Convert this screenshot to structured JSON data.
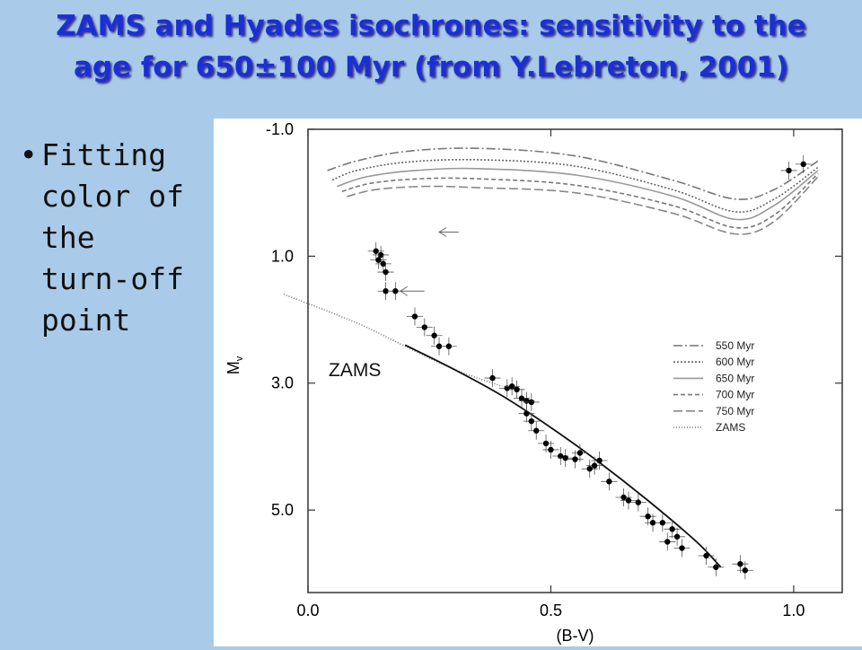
{
  "slide": {
    "title_line1": "ZAMS and Hyades isochrones: sensitivity to the",
    "title_line2": "age for 650±100 Myr (from Y.Lebreton, 2001)",
    "bullet": "Fitting\ncolor of\nthe\nturn-off\npoint",
    "annotation": "ZAMS"
  },
  "chart_data": {
    "type": "line",
    "xlabel": "(B-V)",
    "ylabel": "M_V",
    "xlim": [
      0.0,
      1.1
    ],
    "ylim": [
      -1.0,
      6.3
    ],
    "y_inverted": true,
    "x_ticks": [
      {
        "v": 0.0,
        "label": "0.0"
      },
      {
        "v": 0.5,
        "label": "0.5"
      },
      {
        "v": 1.0,
        "label": "1.0"
      }
    ],
    "y_ticks": [
      {
        "v": -1.0,
        "label": "-1.0"
      },
      {
        "v": 1.0,
        "label": "1.0"
      },
      {
        "v": 3.0,
        "label": "3.0"
      },
      {
        "v": 5.0,
        "label": "5.0"
      }
    ],
    "legend_position": "right",
    "series": [
      {
        "name": "550 Myr",
        "dash": "10,3,2,3",
        "color": "#777777",
        "x": [
          0.04,
          0.1,
          0.2,
          0.35,
          0.55,
          0.75,
          0.88,
          0.96,
          1.05
        ],
        "y": [
          -0.35,
          -0.5,
          -0.65,
          -0.7,
          -0.58,
          -0.2,
          0.1,
          -0.05,
          -0.5
        ]
      },
      {
        "name": "600 Myr",
        "dash": "2,2",
        "color": "#666666",
        "x": [
          0.05,
          0.1,
          0.2,
          0.35,
          0.55,
          0.75,
          0.88,
          0.96,
          1.05
        ],
        "y": [
          -0.2,
          -0.35,
          -0.48,
          -0.52,
          -0.42,
          -0.05,
          0.3,
          0.1,
          -0.4
        ]
      },
      {
        "name": "650 Myr",
        "dash": "",
        "color": "#999999",
        "x": [
          0.06,
          0.12,
          0.22,
          0.35,
          0.55,
          0.75,
          0.88,
          0.96,
          1.05
        ],
        "y": [
          -0.1,
          -0.25,
          -0.35,
          -0.38,
          -0.28,
          0.05,
          0.42,
          0.2,
          -0.35
        ]
      },
      {
        "name": "700 Myr",
        "dash": "5,3",
        "color": "#777777",
        "x": [
          0.07,
          0.13,
          0.23,
          0.35,
          0.55,
          0.75,
          0.88,
          0.96,
          1.05
        ],
        "y": [
          -0.02,
          -0.15,
          -0.22,
          -0.22,
          -0.12,
          0.2,
          0.55,
          0.35,
          -0.3
        ]
      },
      {
        "name": "750 Myr",
        "dash": "10,4",
        "color": "#888888",
        "x": [
          0.08,
          0.14,
          0.24,
          0.35,
          0.55,
          0.75,
          0.88,
          0.96,
          1.05
        ],
        "y": [
          0.06,
          -0.05,
          -0.1,
          -0.08,
          0.0,
          0.32,
          0.65,
          0.45,
          -0.25
        ]
      },
      {
        "name": "ZAMS",
        "dash": "1,2",
        "color": "#777777",
        "x": [
          -0.05,
          0.1,
          0.2,
          0.3,
          0.4
        ],
        "y": [
          1.6,
          2.05,
          2.42,
          2.78,
          3.05
        ]
      }
    ],
    "main_sequence_line": {
      "x": [
        0.2,
        0.3,
        0.4,
        0.5,
        0.6,
        0.7,
        0.8,
        0.85
      ],
      "y": [
        2.4,
        2.78,
        3.2,
        3.7,
        4.25,
        4.85,
        5.5,
        5.9
      ]
    },
    "points": [
      {
        "x": 0.14,
        "y": 0.92
      },
      {
        "x": 0.15,
        "y": 0.98
      },
      {
        "x": 0.155,
        "y": 1.12
      },
      {
        "x": 0.16,
        "y": 1.25
      },
      {
        "x": 0.145,
        "y": 1.06
      },
      {
        "x": 0.16,
        "y": 1.55
      },
      {
        "x": 0.18,
        "y": 1.55
      },
      {
        "x": 0.22,
        "y": 1.95
      },
      {
        "x": 0.24,
        "y": 2.12
      },
      {
        "x": 0.26,
        "y": 2.25
      },
      {
        "x": 0.27,
        "y": 2.42
      },
      {
        "x": 0.29,
        "y": 2.42
      },
      {
        "x": 0.38,
        "y": 2.92
      },
      {
        "x": 0.41,
        "y": 3.08
      },
      {
        "x": 0.42,
        "y": 3.05
      },
      {
        "x": 0.43,
        "y": 3.1
      },
      {
        "x": 0.44,
        "y": 3.24
      },
      {
        "x": 0.45,
        "y": 3.28
      },
      {
        "x": 0.46,
        "y": 3.3
      },
      {
        "x": 0.45,
        "y": 3.48
      },
      {
        "x": 0.46,
        "y": 3.6
      },
      {
        "x": 0.47,
        "y": 3.75
      },
      {
        "x": 0.49,
        "y": 3.95
      },
      {
        "x": 0.5,
        "y": 4.05
      },
      {
        "x": 0.52,
        "y": 4.15
      },
      {
        "x": 0.53,
        "y": 4.18
      },
      {
        "x": 0.55,
        "y": 4.2
      },
      {
        "x": 0.56,
        "y": 4.1
      },
      {
        "x": 0.58,
        "y": 4.35
      },
      {
        "x": 0.59,
        "y": 4.3
      },
      {
        "x": 0.6,
        "y": 4.22
      },
      {
        "x": 0.62,
        "y": 4.55
      },
      {
        "x": 0.65,
        "y": 4.8
      },
      {
        "x": 0.66,
        "y": 4.85
      },
      {
        "x": 0.68,
        "y": 4.88
      },
      {
        "x": 0.7,
        "y": 5.1
      },
      {
        "x": 0.71,
        "y": 5.2
      },
      {
        "x": 0.73,
        "y": 5.2
      },
      {
        "x": 0.75,
        "y": 5.3
      },
      {
        "x": 0.76,
        "y": 5.42
      },
      {
        "x": 0.74,
        "y": 5.5
      },
      {
        "x": 0.77,
        "y": 5.6
      },
      {
        "x": 0.82,
        "y": 5.72
      },
      {
        "x": 0.84,
        "y": 5.9
      },
      {
        "x": 0.89,
        "y": 5.85
      },
      {
        "x": 0.9,
        "y": 5.95
      },
      {
        "x": 0.99,
        "y": -0.35
      },
      {
        "x": 1.02,
        "y": -0.45
      }
    ]
  }
}
